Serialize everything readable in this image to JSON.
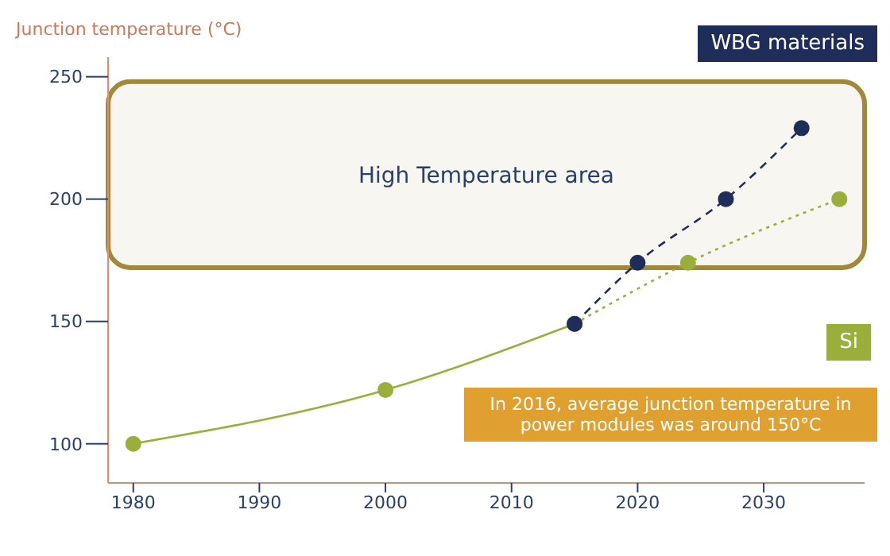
{
  "chart_data": {
    "type": "line",
    "ylabel": "Junction temperature (°C)",
    "xlim": [
      1978,
      2038
    ],
    "xticks": [
      1980,
      1990,
      2000,
      2010,
      2020,
      2030
    ],
    "ylim": [
      84,
      258
    ],
    "yticks": [
      100,
      150,
      200,
      250
    ],
    "grid": false,
    "legend": false,
    "marker": "circle",
    "series": [
      {
        "color": "#9aae3c",
        "x": [
          1980,
          2000,
          2015
        ],
        "values": [
          100,
          122,
          149
        ],
        "line_style": "solid"
      },
      {
        "name": "Si",
        "color": "#9aae3c",
        "x": [
          2015,
          2024,
          2036
        ],
        "values": [
          149,
          174,
          200
        ],
        "line_style": "dotted"
      },
      {
        "name": "WBG materials",
        "color": "#1f2d5a",
        "x": [
          2015,
          2020,
          2027,
          2033
        ],
        "values": [
          149,
          174,
          200,
          229
        ],
        "line_style": "dashed"
      }
    ],
    "bands": [
      {
        "axis": "y",
        "from": 172,
        "to": 248,
        "label": "High Temperature area",
        "color": "#a08a3a"
      }
    ],
    "annotations": [
      "In 2016, average junction temperature in power modules was around 150°C"
    ]
  }
}
